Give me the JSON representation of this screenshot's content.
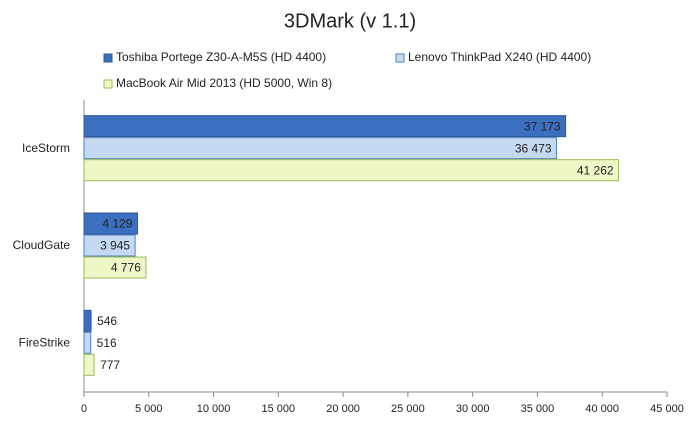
{
  "chart_data": {
    "type": "hbar",
    "title": "3DMark (v 1.1)",
    "categories": [
      "IceStorm",
      "CloudGate",
      "FireStrike"
    ],
    "series": [
      {
        "name": "Toshiba Portege Z30-A-M5S (HD 4400)",
        "color": "#3c6fbf",
        "values": [
          37173,
          4129,
          546
        ],
        "value_labels": [
          "37 173",
          "4 129",
          "546"
        ]
      },
      {
        "name": "Lenovo ThinkPad X240 (HD 4400)",
        "color": "#c6d9f3",
        "values": [
          36473,
          3945,
          516
        ],
        "value_labels": [
          "36 473",
          "3 945",
          "516"
        ]
      },
      {
        "name": "MacBook Air Mid 2013 (HD 5000, Win 8)",
        "color": "#eef7c6",
        "values": [
          41262,
          4776,
          777
        ],
        "value_labels": [
          "41 262",
          "4 776",
          "777"
        ]
      }
    ],
    "xlim": [
      0,
      45000
    ],
    "xticks": [
      0,
      {
        "value": 5000,
        "label": "5 000"
      },
      {
        "value": 10000,
        "label": "10 000"
      },
      {
        "value": 15000,
        "label": "15 000"
      },
      {
        "value": 20000,
        "label": "20 000"
      },
      {
        "value": 25000,
        "label": "25 000"
      },
      {
        "value": 30000,
        "label": "30 000"
      },
      {
        "value": 35000,
        "label": "35 000"
      },
      {
        "value": 40000,
        "label": "40 000"
      },
      {
        "value": 45000,
        "label": "45 000"
      }
    ],
    "grid": false
  }
}
